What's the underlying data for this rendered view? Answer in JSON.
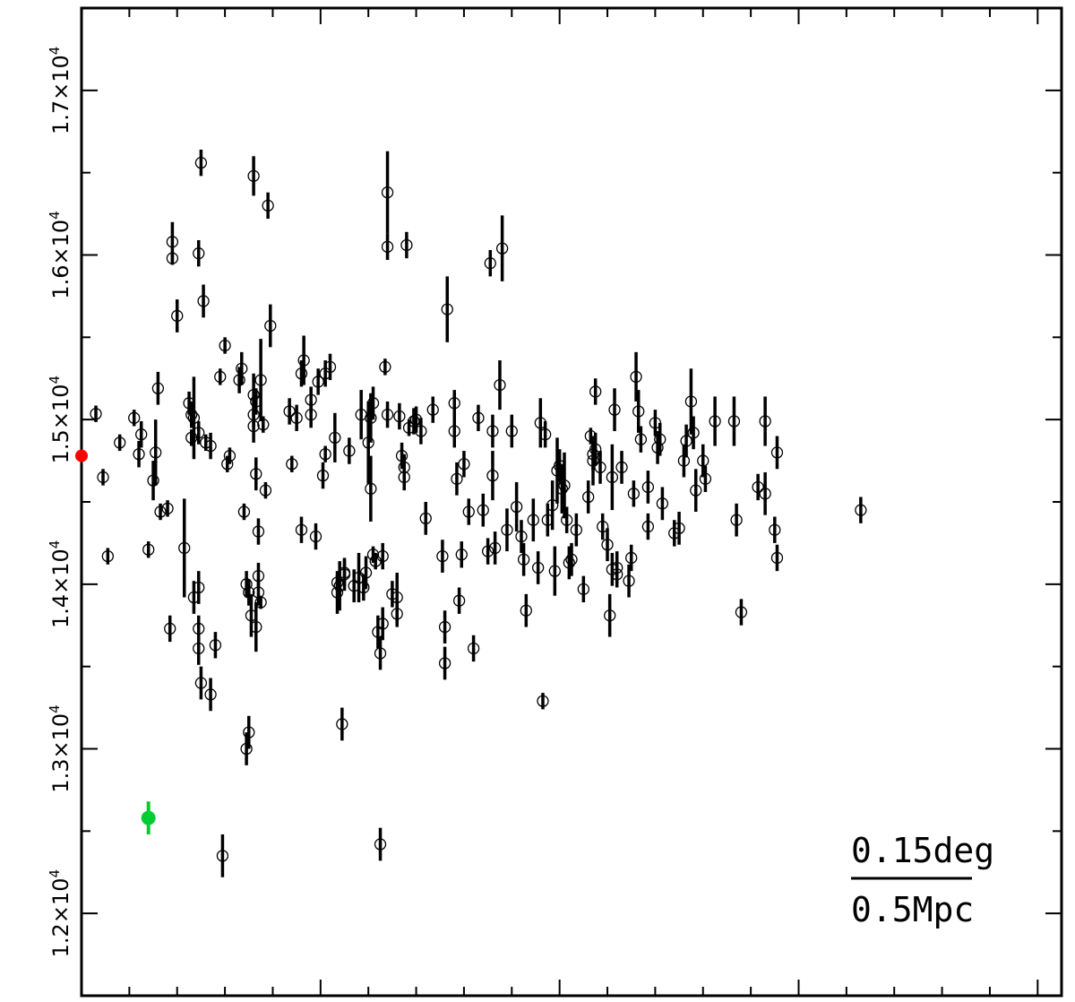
{
  "chart_data": {
    "type": "scatter",
    "title": "",
    "xlabel": "",
    "ylabel": "",
    "xlim": [
      0,
      20.5
    ],
    "ylim": [
      11500,
      17500
    ],
    "x_tick_labels": false,
    "y_ticks": [
      {
        "value": 12000,
        "mantissa": "1.2",
        "exponent": "4"
      },
      {
        "value": 13000,
        "mantissa": "1.3",
        "exponent": "4"
      },
      {
        "value": 14000,
        "mantissa": "1.4",
        "exponent": "4"
      },
      {
        "value": 15000,
        "mantissa": "1.5",
        "exponent": "4"
      },
      {
        "value": 16000,
        "mantissa": "1.6",
        "exponent": "4"
      },
      {
        "value": 17000,
        "mantissa": "1.7",
        "exponent": "4"
      }
    ],
    "grid": false,
    "legend": "none",
    "annotation": {
      "top_text": "0.15deg",
      "bottom_text": "0.5Mpc",
      "position": "bottom-right"
    },
    "colors": {
      "main_points": "#000000",
      "highlight_red": "#ff0000",
      "highlight_green": "#00cc33"
    },
    "points": [
      [
        0.3,
        15035,
        50
      ],
      [
        0.8,
        14860,
        50
      ],
      [
        0.45,
        14650,
        50
      ],
      [
        0.55,
        14170,
        50
      ],
      [
        1.4,
        14210,
        50
      ],
      [
        1.1,
        15010,
        50
      ],
      [
        1.25,
        14910,
        80
      ],
      [
        1.2,
        14790,
        80
      ],
      [
        1.55,
        14800,
        200
      ],
      [
        1.5,
        14630,
        120
      ],
      [
        1.6,
        15190,
        100
      ],
      [
        1.65,
        14440,
        50
      ],
      [
        1.8,
        14460,
        50
      ],
      [
        1.9,
        16080,
        120
      ],
      [
        1.9,
        15980,
        40
      ],
      [
        2.0,
        15630,
        100
      ],
      [
        2.25,
        15100,
        70
      ],
      [
        2.3,
        14890,
        50
      ],
      [
        2.3,
        15030,
        80
      ],
      [
        1.85,
        13730,
        80
      ],
      [
        2.15,
        14220,
        300
      ],
      [
        2.35,
        15010,
        250
      ],
      [
        2.35,
        13920,
        100
      ],
      [
        2.45,
        14920,
        70
      ],
      [
        2.45,
        13980,
        100
      ],
      [
        2.45,
        13730,
        80
      ],
      [
        2.5,
        16560,
        80
      ],
      [
        2.45,
        16010,
        80
      ],
      [
        2.55,
        15720,
        100
      ],
      [
        2.6,
        14860,
        50
      ],
      [
        2.7,
        14840,
        80
      ],
      [
        2.8,
        13630,
        80
      ],
      [
        2.9,
        15260,
        50
      ],
      [
        3.0,
        15450,
        50
      ],
      [
        3.05,
        14730,
        50
      ],
      [
        3.1,
        14780,
        50
      ],
      [
        3.3,
        15240,
        80
      ],
      [
        3.35,
        15310,
        100
      ],
      [
        3.4,
        14440,
        50
      ],
      [
        3.45,
        14000,
        80
      ],
      [
        3.5,
        13950,
        80
      ],
      [
        3.55,
        13810,
        130
      ],
      [
        3.6,
        16480,
        120
      ],
      [
        3.6,
        15150,
        130
      ],
      [
        3.6,
        14960,
        100
      ],
      [
        3.6,
        15030,
        80
      ],
      [
        3.65,
        15110,
        80
      ],
      [
        3.65,
        14670,
        100
      ],
      [
        3.7,
        14320,
        80
      ],
      [
        3.7,
        14050,
        80
      ],
      [
        3.7,
        13950,
        80
      ],
      [
        3.75,
        13890,
        40
      ],
      [
        3.75,
        15240,
        250
      ],
      [
        3.8,
        14970,
        50
      ],
      [
        3.85,
        14570,
        50
      ],
      [
        3.95,
        15570,
        130
      ],
      [
        3.9,
        16300,
        80
      ],
      [
        3.65,
        13740,
        150
      ],
      [
        3.45,
        13000,
        100
      ],
      [
        3.5,
        13100,
        100
      ],
      [
        2.5,
        13400,
        100
      ],
      [
        2.7,
        13330,
        100
      ],
      [
        2.45,
        13610,
        100
      ],
      [
        2.95,
        12350,
        130
      ],
      [
        4.35,
        15050,
        80
      ],
      [
        4.4,
        14730,
        50
      ],
      [
        4.5,
        15010,
        80
      ],
      [
        4.6,
        14330,
        80
      ],
      [
        4.6,
        15280,
        80
      ],
      [
        4.65,
        15360,
        150
      ],
      [
        4.8,
        15030,
        80
      ],
      [
        4.8,
        15120,
        80
      ],
      [
        4.9,
        14290,
        80
      ],
      [
        4.95,
        15230,
        80
      ],
      [
        5.05,
        14660,
        80
      ],
      [
        5.1,
        14790,
        50
      ],
      [
        5.1,
        15280,
        80
      ],
      [
        5.2,
        15320,
        80
      ],
      [
        5.3,
        14890,
        150
      ],
      [
        5.35,
        13950,
        130
      ],
      [
        5.35,
        14010,
        50
      ],
      [
        5.4,
        13990,
        150
      ],
      [
        5.45,
        13150,
        100
      ],
      [
        5.5,
        14070,
        80
      ],
      [
        5.5,
        14060,
        100
      ],
      [
        5.6,
        14810,
        80
      ],
      [
        5.7,
        13990,
        100
      ],
      [
        5.8,
        14040,
        150
      ],
      [
        5.85,
        15030,
        150
      ],
      [
        5.9,
        13980,
        80
      ],
      [
        5.95,
        14070,
        100
      ],
      [
        6.0,
        14860,
        250
      ],
      [
        6.05,
        14580,
        200
      ],
      [
        6.05,
        15010,
        150
      ],
      [
        6.1,
        14180,
        50
      ],
      [
        6.1,
        15100,
        100
      ],
      [
        6.15,
        14140,
        50
      ],
      [
        6.2,
        13710,
        100
      ],
      [
        6.25,
        13580,
        100
      ],
      [
        6.25,
        12420,
        100
      ],
      [
        6.3,
        14170,
        80
      ],
      [
        6.3,
        13760,
        100
      ],
      [
        6.35,
        15320,
        50
      ],
      [
        6.4,
        16380,
        250
      ],
      [
        6.4,
        16050,
        80
      ],
      [
        6.4,
        15030,
        80
      ],
      [
        6.5,
        13940,
        80
      ],
      [
        6.6,
        13920,
        150
      ],
      [
        6.6,
        13820,
        80
      ],
      [
        6.65,
        15020,
        80
      ],
      [
        6.7,
        14780,
        80
      ],
      [
        6.75,
        14650,
        80
      ],
      [
        6.75,
        14710,
        80
      ],
      [
        6.8,
        16060,
        80
      ],
      [
        6.85,
        14950,
        50
      ],
      [
        6.95,
        14990,
        80
      ],
      [
        7.0,
        15000,
        80
      ],
      [
        7.1,
        14930,
        80
      ],
      [
        7.2,
        14400,
        100
      ],
      [
        7.35,
        15060,
        80
      ],
      [
        7.55,
        14170,
        100
      ],
      [
        7.6,
        13740,
        100
      ],
      [
        7.6,
        13520,
        100
      ],
      [
        7.65,
        15670,
        200
      ],
      [
        7.8,
        15100,
        80
      ],
      [
        7.8,
        14930,
        100
      ],
      [
        7.85,
        14640,
        100
      ],
      [
        7.9,
        13900,
        80
      ],
      [
        7.95,
        14180,
        80
      ],
      [
        8.0,
        14730,
        80
      ],
      [
        8.1,
        14440,
        80
      ],
      [
        8.2,
        13610,
        80
      ],
      [
        8.3,
        15010,
        80
      ],
      [
        8.4,
        14450,
        100
      ],
      [
        8.5,
        14200,
        80
      ],
      [
        8.55,
        15950,
        80
      ],
      [
        8.6,
        14930,
        100
      ],
      [
        8.6,
        14660,
        150
      ],
      [
        8.65,
        14220,
        100
      ],
      [
        8.75,
        15210,
        150
      ],
      [
        8.8,
        16040,
        200
      ],
      [
        8.9,
        14330,
        130
      ],
      [
        9.0,
        14930,
        100
      ],
      [
        9.1,
        14470,
        150
      ],
      [
        9.2,
        14290,
        100
      ],
      [
        9.25,
        14150,
        100
      ],
      [
        9.3,
        13840,
        100
      ],
      [
        9.45,
        14390,
        130
      ],
      [
        9.55,
        14100,
        100
      ],
      [
        9.6,
        14980,
        150
      ],
      [
        9.65,
        13290,
        50
      ],
      [
        9.7,
        14910,
        80
      ],
      [
        9.75,
        14390,
        100
      ],
      [
        9.85,
        14480,
        150
      ],
      [
        9.9,
        14080,
        150
      ],
      [
        9.95,
        14690,
        200
      ],
      [
        10.0,
        14720,
        100
      ],
      [
        10.05,
        14580,
        150
      ],
      [
        10.1,
        14600,
        200
      ],
      [
        10.15,
        14390,
        80
      ],
      [
        10.2,
        14130,
        100
      ],
      [
        10.25,
        14150,
        100
      ],
      [
        10.35,
        14330,
        100
      ],
      [
        10.5,
        13970,
        80
      ],
      [
        10.6,
        14530,
        100
      ],
      [
        10.65,
        14900,
        50
      ],
      [
        10.7,
        14750,
        150
      ],
      [
        10.7,
        14790,
        100
      ],
      [
        10.75,
        14820,
        100
      ],
      [
        10.75,
        15170,
        80
      ],
      [
        10.85,
        14710,
        100
      ],
      [
        10.9,
        14350,
        80
      ],
      [
        11.0,
        14240,
        100
      ],
      [
        11.05,
        13810,
        130
      ],
      [
        11.1,
        14090,
        100
      ],
      [
        11.1,
        14650,
        200
      ],
      [
        11.15,
        15060,
        130
      ],
      [
        11.2,
        14100,
        100
      ],
      [
        11.2,
        14060,
        80
      ],
      [
        11.3,
        14710,
        100
      ],
      [
        11.45,
        14020,
        100
      ],
      [
        11.5,
        14160,
        80
      ],
      [
        11.55,
        14550,
        80
      ],
      [
        11.6,
        15260,
        150
      ],
      [
        11.65,
        15050,
        130
      ],
      [
        11.7,
        14880,
        80
      ],
      [
        11.85,
        14350,
        80
      ],
      [
        11.85,
        14590,
        100
      ],
      [
        12.0,
        14980,
        80
      ],
      [
        12.05,
        14830,
        100
      ],
      [
        12.1,
        14880,
        100
      ],
      [
        12.15,
        14490,
        100
      ],
      [
        12.4,
        14310,
        80
      ],
      [
        12.5,
        14340,
        100
      ],
      [
        12.6,
        14750,
        100
      ],
      [
        12.65,
        14870,
        100
      ],
      [
        12.75,
        15110,
        200
      ],
      [
        12.8,
        14920,
        100
      ],
      [
        12.85,
        14570,
        130
      ],
      [
        13.0,
        14750,
        100
      ],
      [
        13.05,
        14640,
        80
      ],
      [
        13.25,
        14990,
        150
      ],
      [
        13.65,
        14990,
        150
      ],
      [
        13.7,
        14390,
        100
      ],
      [
        13.8,
        13830,
        80
      ],
      [
        14.15,
        14590,
        80
      ],
      [
        14.3,
        14550,
        130
      ],
      [
        14.3,
        14990,
        150
      ],
      [
        14.55,
        14800,
        100
      ],
      [
        14.5,
        14330,
        80
      ],
      [
        14.55,
        14160,
        80
      ],
      [
        16.3,
        14450,
        80
      ]
    ],
    "highlight_points": [
      {
        "x": 0,
        "y": 14780,
        "err": 0,
        "color": "#ff0000"
      },
      {
        "x": 1.4,
        "y": 12580,
        "err": 100,
        "color": "#00cc33"
      }
    ]
  }
}
